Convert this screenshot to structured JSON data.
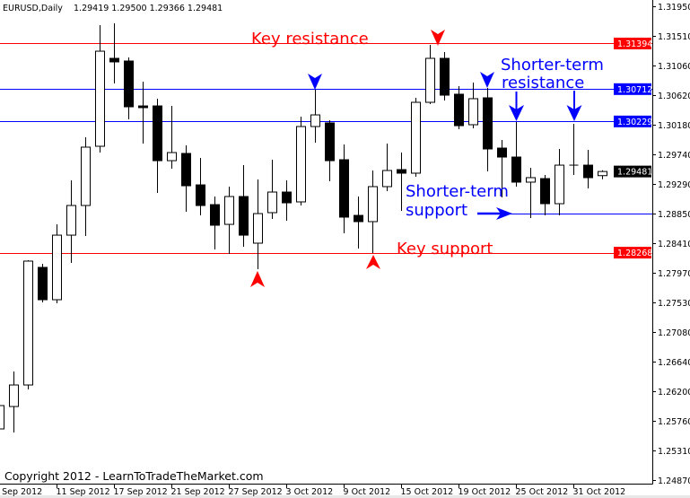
{
  "header": {
    "symbol": "EURUSD,Daily",
    "ohlc": "1.29419 1.29500 1.29366 1.29481"
  },
  "copyright": "Copyright 2012 - LearnToTradeTheMarket.com",
  "colors": {
    "red": "#ff0000",
    "blue": "#0000ff",
    "bull_fill": "#ffffff",
    "bear_fill": "#000000",
    "background": "#ffffff"
  },
  "annotations": {
    "key_resistance": "Key resistance",
    "key_support": "Key support",
    "short_resistance_1": "Shorter-term",
    "short_resistance_2": "resistance",
    "short_support_1": "Shorter-term",
    "short_support_2": "support"
  },
  "chart_data": {
    "type": "candlestick",
    "title": "EURUSD,Daily",
    "ylim": [
      1.2487,
      1.3195
    ],
    "grid": false,
    "y_ticks": [
      "1.31950",
      "1.31510",
      "1.31060",
      "1.30620",
      "1.30180",
      "1.29740",
      "1.29290",
      "1.28850",
      "1.28410",
      "1.27970",
      "1.27530",
      "1.27080",
      "1.26640",
      "1.26200",
      "1.25760",
      "1.25310",
      "1.24870"
    ],
    "x_ticks": [
      {
        "candle": 0,
        "label": "5 Sep 2012"
      },
      {
        "candle": 4,
        "label": "11 Sep 2012"
      },
      {
        "candle": 8,
        "label": "17 Sep 2012"
      },
      {
        "candle": 12,
        "label": "21 Sep 2012"
      },
      {
        "candle": 16,
        "label": "27 Sep 2012"
      },
      {
        "candle": 20,
        "label": "3 Oct 2012"
      },
      {
        "candle": 24,
        "label": "9 Oct 2012"
      },
      {
        "candle": 28,
        "label": "15 Oct 2012"
      },
      {
        "candle": 32,
        "label": "19 Oct 2012"
      },
      {
        "candle": 36,
        "label": "25 Oct 2012"
      },
      {
        "candle": 40,
        "label": "31 Oct 2012"
      }
    ],
    "horizontal_lines": [
      {
        "price": 1.31394,
        "label": "1.31394",
        "color": "#ff0000",
        "partial": false
      },
      {
        "price": 1.30712,
        "label": "1.30712",
        "color": "#0000ff",
        "partial": false
      },
      {
        "price": 1.30229,
        "label": "1.30229",
        "color": "#0000ff",
        "partial": false
      },
      {
        "price": 1.2885,
        "label": "",
        "color": "#0000ff",
        "partial": true
      },
      {
        "price": 1.28268,
        "label": "1.28268",
        "color": "#ff0000",
        "partial": false
      }
    ],
    "current_price": {
      "price": 1.29481,
      "label": "1.29481",
      "color": "#000000"
    },
    "candles": [
      [
        1.25634,
        1.26036,
        1.25607,
        1.25983
      ],
      [
        1.25969,
        1.26492,
        1.2558,
        1.26291
      ],
      [
        1.26291,
        1.28155,
        1.26224,
        1.28142
      ],
      [
        1.28048,
        1.28101,
        1.27525,
        1.27565
      ],
      [
        1.27565,
        1.28691,
        1.27511,
        1.2853
      ],
      [
        1.2853,
        1.29348,
        1.28115,
        1.28973
      ],
      [
        1.28973,
        1.29992,
        1.28517,
        1.29845
      ],
      [
        1.29858,
        1.31668,
        1.29764,
        1.31279
      ],
      [
        1.31172,
        1.31695,
        1.30797,
        1.31119
      ],
      [
        1.31132,
        1.31186,
        1.3026,
        1.30448
      ],
      [
        1.30461,
        1.30824,
        1.29898,
        1.30435
      ],
      [
        1.30461,
        1.30569,
        1.29161,
        1.29643
      ],
      [
        1.29643,
        1.30461,
        1.29523,
        1.29764
      ],
      [
        1.29751,
        1.29871,
        1.28879,
        1.29268
      ],
      [
        1.29281,
        1.29684,
        1.28825,
        1.28973
      ],
      [
        1.28986,
        1.29107,
        1.28316,
        1.28678
      ],
      [
        1.28691,
        1.29255,
        1.28249,
        1.29107
      ],
      [
        1.29107,
        1.29576,
        1.28356,
        1.2853
      ],
      [
        1.2841,
        1.29362,
        1.28021,
        1.28852
      ],
      [
        1.28866,
        1.29657,
        1.28772,
        1.29174
      ],
      [
        1.29174,
        1.29348,
        1.28745,
        1.29013
      ],
      [
        1.29027,
        1.30301,
        1.28973,
        1.30153
      ],
      [
        1.30153,
        1.30703,
        1.29912,
        1.30327
      ],
      [
        1.30207,
        1.30247,
        1.29335,
        1.29643
      ],
      [
        1.29657,
        1.29885,
        1.28557,
        1.28799
      ],
      [
        1.28825,
        1.29107,
        1.28329,
        1.28732
      ],
      [
        1.28732,
        1.29496,
        1.28262,
        1.29255
      ],
      [
        1.29255,
        1.29898,
        1.29188,
        1.29496
      ],
      [
        1.29509,
        1.29764,
        1.28893,
        1.29456
      ],
      [
        1.29456,
        1.30582,
        1.29402,
        1.30515
      ],
      [
        1.30515,
        1.31373,
        1.30488,
        1.31172
      ],
      [
        1.31172,
        1.31266,
        1.30542,
        1.30622
      ],
      [
        1.30636,
        1.30757,
        1.30113,
        1.30166
      ],
      [
        1.3018,
        1.3081,
        1.30126,
        1.30569
      ],
      [
        1.30582,
        1.3073,
        1.29483,
        1.29818
      ],
      [
        1.29831,
        1.29952,
        1.29094,
        1.29697
      ],
      [
        1.29697,
        1.3022,
        1.29255,
        1.29322
      ],
      [
        1.29322,
        1.29536,
        1.28785,
        1.29389
      ],
      [
        1.29375,
        1.29429,
        1.28825,
        1.29
      ],
      [
        1.29,
        1.29818,
        1.28825,
        1.29576
      ],
      [
        1.29576,
        1.30193,
        1.29429,
        1.29576
      ],
      [
        1.29576,
        1.29804,
        1.29228,
        1.29389
      ],
      [
        1.29419,
        1.295,
        1.29366,
        1.29481
      ]
    ]
  }
}
